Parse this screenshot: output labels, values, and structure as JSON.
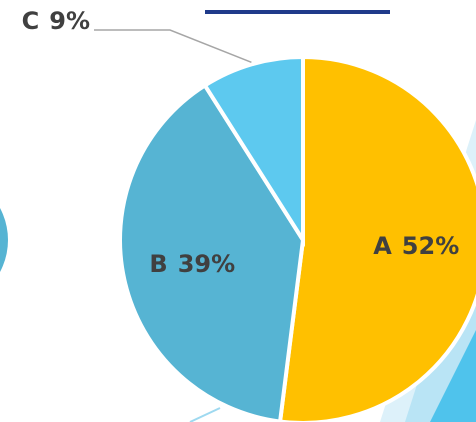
{
  "chart_data": {
    "type": "pie",
    "categories": [
      "A",
      "B",
      "C"
    ],
    "values": [
      52,
      39,
      9
    ],
    "value_labels": [
      "52%",
      "39%",
      "9%"
    ],
    "colors": [
      "#FFC000",
      "#56B4D3",
      "#5DC9EF"
    ]
  }
}
